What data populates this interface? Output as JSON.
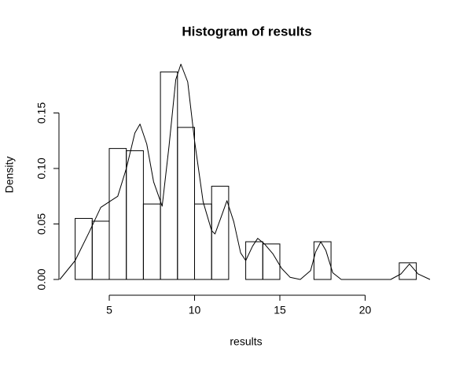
{
  "chart_data": {
    "type": "histogram",
    "title": "Histogram of results",
    "x_label": "results",
    "y_label": "Density",
    "bins": [
      3,
      4,
      5,
      6,
      7,
      8,
      9,
      10,
      11,
      12,
      13,
      14,
      15,
      16,
      17,
      18,
      19,
      20,
      21,
      22,
      23
    ],
    "values": [
      0.055,
      0.0525,
      0.118,
      0.116,
      0.068,
      0.187,
      0.137,
      0.068,
      0.084,
      0,
      0.034,
      0.032,
      0,
      0,
      0.034,
      0,
      0,
      0,
      0,
      0.015
    ],
    "density": {
      "x": [
        2.1,
        3,
        3.8,
        4.5,
        5,
        5.5,
        6,
        6.5,
        6.8,
        7.2,
        7.6,
        8.1,
        8.5,
        8.9,
        9.2,
        9.6,
        10,
        10.5,
        11,
        11.2,
        11.6,
        11.9,
        12.3,
        12.7,
        13,
        13.4,
        13.7,
        14.1,
        14.6,
        15.1,
        15.6,
        16.2,
        16.8,
        17.1,
        17.4,
        17.7,
        18.1,
        18.6,
        21.5,
        22.1,
        22.6,
        23.1,
        23.8
      ],
      "y": [
        0,
        0.017,
        0.042,
        0.065,
        0.07,
        0.075,
        0.1,
        0.132,
        0.14,
        0.122,
        0.088,
        0.066,
        0.12,
        0.18,
        0.194,
        0.178,
        0.125,
        0.07,
        0.044,
        0.041,
        0.058,
        0.071,
        0.052,
        0.024,
        0.017,
        0.03,
        0.037,
        0.032,
        0.023,
        0.01,
        0.002,
        0,
        0.008,
        0.025,
        0.034,
        0.026,
        0.006,
        0,
        0,
        0.005,
        0.014,
        0.005,
        0
      ]
    },
    "xlim": [
      2,
      24
    ],
    "ylim": [
      0,
      0.2
    ],
    "xticks": [
      5,
      10,
      15,
      20
    ],
    "yticks": [
      {
        "value": 0,
        "label": "0.00"
      },
      {
        "value": 0.05,
        "label": "0.05"
      },
      {
        "value": 0.1,
        "label": "0.10"
      },
      {
        "value": 0.15,
        "label": "0.15"
      }
    ]
  }
}
